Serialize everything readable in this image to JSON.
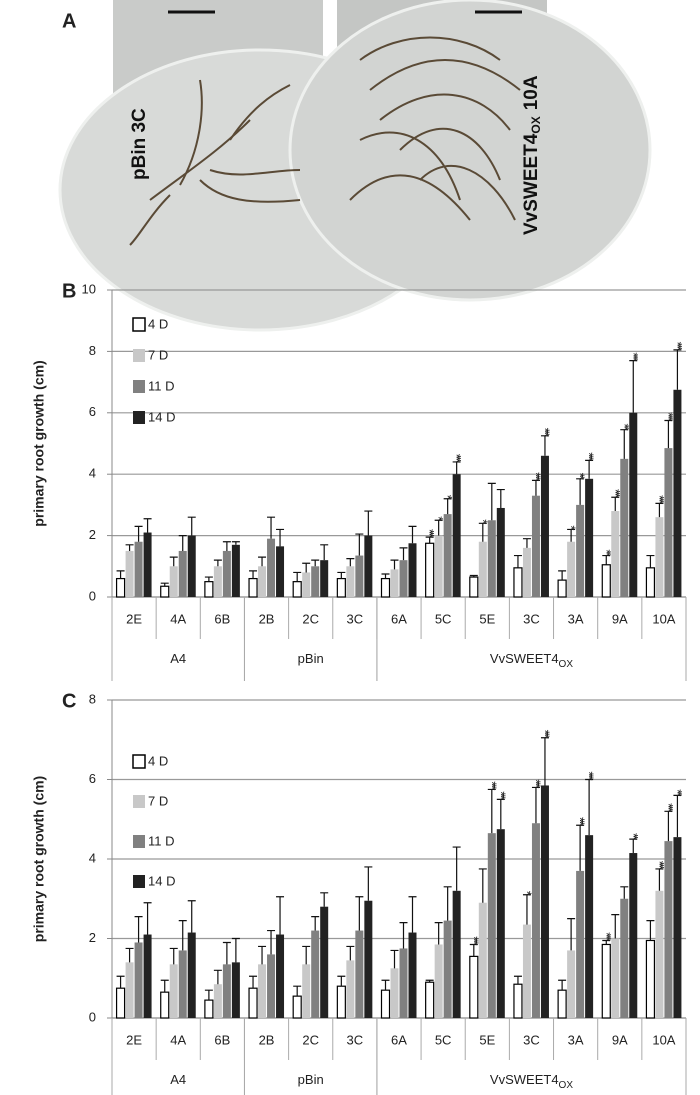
{
  "panel_a": {
    "label": "A",
    "images": [
      {
        "label": "pBin 3C"
      },
      {
        "label": {
          "text": "VvSWEET4",
          "sub": "OX",
          "suffix": "10A"
        }
      }
    ]
  },
  "chart_data": [
    {
      "type": "bar",
      "panel": "B",
      "y_label": "primary root growth (cm)",
      "categories": [
        "2E",
        "4A",
        "6B",
        "2B",
        "2C",
        "3C",
        "6A",
        "5C",
        "5E",
        "3C",
        "3A",
        "9A",
        "10A"
      ],
      "groups": [
        {
          "label": "A4",
          "span": 3
        },
        {
          "label": "pBin",
          "span": 3
        },
        {
          "label": "VvSWEET4",
          "sub": "OX",
          "span": 7
        }
      ],
      "ylim": [
        0,
        10
      ],
      "yticks": [
        0,
        2,
        4,
        6,
        8,
        10
      ],
      "grid": true,
      "legend": "upper left",
      "series": [
        {
          "name": "4 D",
          "color": "#ffffff",
          "edgecolor": "#000000",
          "values": [
            0.6,
            0.35,
            0.5,
            0.6,
            0.5,
            0.6,
            0.6,
            1.75,
            0.65,
            0.95,
            0.55,
            1.05,
            0.95
          ],
          "errors": [
            0.25,
            0.1,
            0.15,
            0.25,
            0.3,
            0.2,
            0.15,
            0.2,
            0.05,
            0.4,
            0.3,
            0.3,
            0.4
          ],
          "significance": [
            null,
            null,
            null,
            null,
            null,
            null,
            null,
            "***",
            null,
            null,
            null,
            "**",
            null
          ]
        },
        {
          "name": "7 D",
          "color": "#c8c8c8",
          "values": [
            1.5,
            1.0,
            1.0,
            1.0,
            0.8,
            1.0,
            0.9,
            2.0,
            1.8,
            1.6,
            1.8,
            2.8,
            2.6
          ],
          "errors": [
            0.2,
            0.3,
            0.2,
            0.3,
            0.3,
            0.25,
            0.3,
            0.5,
            0.6,
            0.3,
            0.4,
            0.45,
            0.45
          ],
          "significance": [
            null,
            null,
            null,
            null,
            null,
            null,
            null,
            "*",
            "*",
            null,
            "*",
            "***",
            "***"
          ]
        },
        {
          "name": "11 D",
          "color": "#808080",
          "values": [
            1.8,
            1.5,
            1.5,
            1.9,
            1.0,
            1.35,
            1.2,
            2.7,
            2.5,
            3.3,
            3.0,
            4.5,
            4.85
          ],
          "errors": [
            0.5,
            0.5,
            0.3,
            0.7,
            0.2,
            0.7,
            0.4,
            0.5,
            1.2,
            0.5,
            0.85,
            0.95,
            0.9
          ],
          "significance": [
            null,
            null,
            null,
            null,
            null,
            null,
            null,
            "*",
            null,
            "***",
            "**",
            "**",
            "***"
          ]
        },
        {
          "name": "14 D",
          "color": "#222222",
          "values": [
            2.1,
            2.0,
            1.7,
            1.65,
            1.2,
            2.0,
            1.75,
            4.0,
            2.9,
            4.6,
            3.85,
            6.0,
            6.75
          ],
          "errors": [
            0.45,
            0.6,
            0.1,
            0.55,
            0.5,
            0.8,
            0.55,
            0.4,
            0.6,
            0.65,
            0.6,
            1.7,
            1.3
          ],
          "significance": [
            null,
            null,
            null,
            null,
            null,
            null,
            null,
            "***",
            null,
            "***",
            "***",
            "***",
            "***"
          ]
        }
      ]
    },
    {
      "type": "bar",
      "panel": "C",
      "y_label": "primary root growth (cm)",
      "categories": [
        "2E",
        "4A",
        "6B",
        "2B",
        "2C",
        "3C",
        "6A",
        "5C",
        "5E",
        "3C",
        "3A",
        "9A",
        "10A"
      ],
      "groups": [
        {
          "label": "A4",
          "span": 3
        },
        {
          "label": "pBin",
          "span": 3
        },
        {
          "label": "VvSWEET4",
          "sub": "OX",
          "span": 7
        }
      ],
      "ylim": [
        0,
        8
      ],
      "yticks": [
        0,
        2,
        4,
        6,
        8
      ],
      "grid": true,
      "legend": "upper left",
      "series": [
        {
          "name": "4 D",
          "color": "#ffffff",
          "edgecolor": "#000000",
          "values": [
            0.75,
            0.65,
            0.45,
            0.75,
            0.55,
            0.8,
            0.7,
            0.9,
            1.55,
            0.85,
            0.7,
            1.85,
            1.95
          ],
          "errors": [
            0.3,
            0.3,
            0.25,
            0.3,
            0.25,
            0.25,
            0.25,
            0.05,
            0.3,
            0.2,
            0.25,
            0.1,
            0.5
          ],
          "significance": [
            null,
            null,
            null,
            null,
            null,
            null,
            null,
            null,
            "***",
            null,
            null,
            "***",
            null
          ]
        },
        {
          "name": "7 D",
          "color": "#c8c8c8",
          "values": [
            1.4,
            1.35,
            0.85,
            1.35,
            1.35,
            1.45,
            1.25,
            1.85,
            2.9,
            2.35,
            1.7,
            2.0,
            3.2
          ],
          "errors": [
            0.35,
            0.4,
            0.35,
            0.45,
            0.45,
            0.35,
            0.45,
            0.55,
            0.85,
            0.75,
            0.8,
            0.6,
            0.55
          ],
          "significance": [
            null,
            null,
            null,
            null,
            null,
            null,
            null,
            null,
            null,
            "*",
            null,
            null,
            "***"
          ]
        },
        {
          "name": "11 D",
          "color": "#808080",
          "values": [
            1.9,
            1.7,
            1.35,
            1.6,
            2.2,
            2.2,
            1.75,
            2.45,
            4.65,
            4.9,
            3.7,
            3.0,
            4.45
          ],
          "errors": [
            0.65,
            0.75,
            0.55,
            0.6,
            0.35,
            0.85,
            0.65,
            0.85,
            1.1,
            0.9,
            1.15,
            0.3,
            0.75
          ],
          "significance": [
            null,
            null,
            null,
            null,
            null,
            null,
            null,
            null,
            "***",
            "***",
            "***",
            null,
            "***"
          ]
        },
        {
          "name": "14 D",
          "color": "#222222",
          "values": [
            2.1,
            2.15,
            1.4,
            2.1,
            2.8,
            2.95,
            2.15,
            3.2,
            4.75,
            5.85,
            4.6,
            4.15,
            4.55
          ],
          "errors": [
            0.8,
            0.8,
            0.6,
            0.95,
            0.35,
            0.85,
            0.9,
            1.1,
            0.75,
            1.2,
            1.4,
            0.35,
            1.05
          ],
          "significance": [
            null,
            null,
            null,
            null,
            null,
            null,
            null,
            null,
            "***",
            "***",
            "***",
            "**",
            "**"
          ]
        }
      ]
    }
  ]
}
